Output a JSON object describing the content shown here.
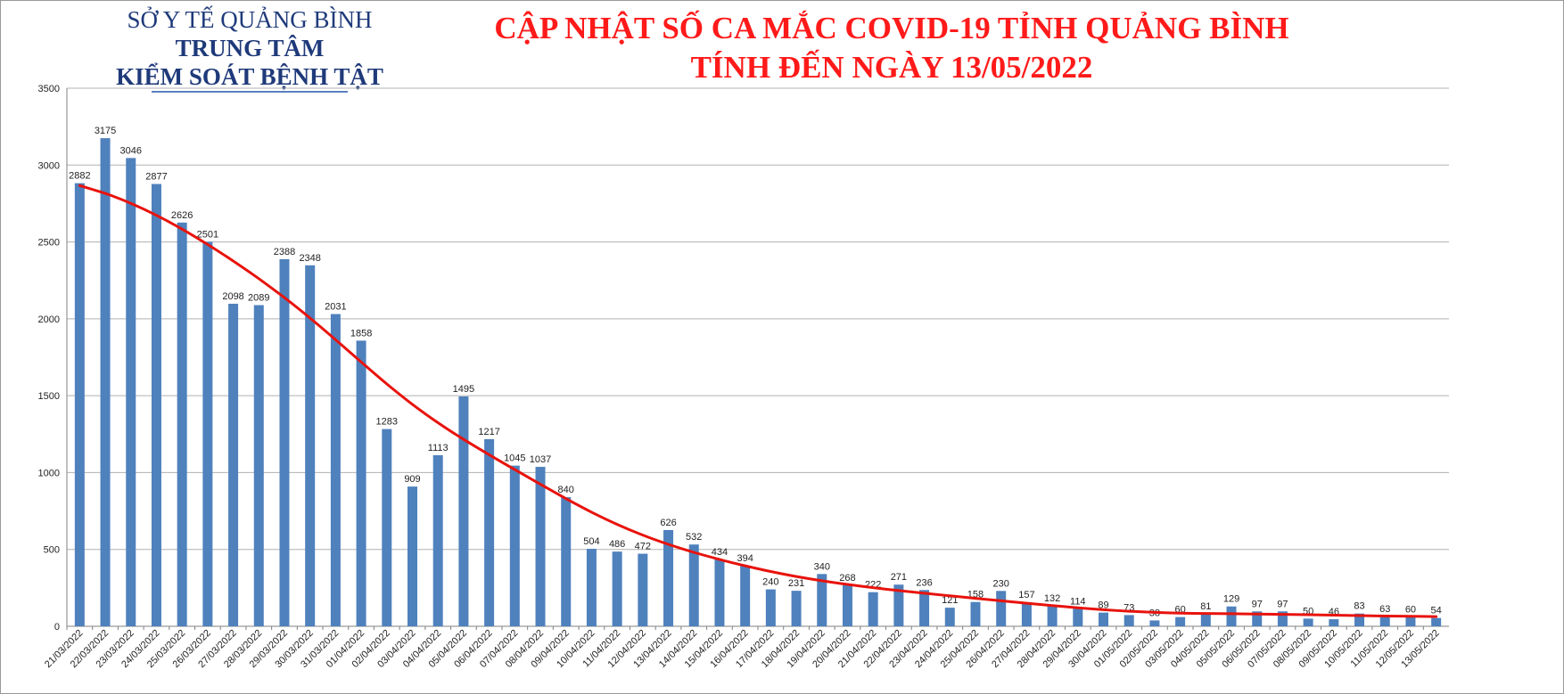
{
  "org": {
    "line1": "SỞ Y TẾ QUẢNG BÌNH",
    "line2": "TRUNG TÂM",
    "line3": "KIỂM SOÁT BỆNH TẬT"
  },
  "colors": {
    "bar": "#4f81bd",
    "trend": "#e8130c",
    "grid": "#b0b0b0",
    "axis": "#808080",
    "text": "#222222"
  },
  "chart_data": {
    "type": "bar",
    "title": [
      "CẬP NHẬT SỐ CA MẮC COVID-19 TỈNH QUẢNG BÌNH",
      "TÍNH ĐẾN NGÀY 13/05/2022"
    ],
    "xlabel": "",
    "ylabel": "",
    "ylim": [
      0,
      3500
    ],
    "yticks": [
      0,
      500,
      1000,
      1500,
      2000,
      2500,
      3000,
      3500
    ],
    "grid": true,
    "legend": "none",
    "trendline": "smooth decreasing curve",
    "categories": [
      "21/03/2022",
      "22/03/2022",
      "23/03/2022",
      "24/03/2022",
      "25/03/2022",
      "26/03/2022",
      "27/03/2022",
      "28/03/2022",
      "29/03/2022",
      "30/03/2022",
      "31/03/2022",
      "01/04/2022",
      "02/04/2022",
      "03/04/2022",
      "04/04/2022",
      "05/04/2022",
      "06/04/2022",
      "07/04/2022",
      "08/04/2022",
      "09/04/2022",
      "10/04/2022",
      "11/04/2022",
      "12/04/2022",
      "13/04/2022",
      "14/04/2022",
      "15/04/2022",
      "16/04/2022",
      "17/04/2022",
      "18/04/2022",
      "19/04/2022",
      "20/04/2022",
      "21/04/2022",
      "22/04/2022",
      "23/04/2022",
      "24/04/2022",
      "25/04/2022",
      "26/04/2022",
      "27/04/2022",
      "28/04/2022",
      "29/04/2022",
      "30/04/2022",
      "01/05/2022",
      "02/05/2022",
      "03/05/2022",
      "04/05/2022",
      "05/05/2022",
      "06/05/2022",
      "07/05/2022",
      "08/05/2022",
      "09/05/2022",
      "10/05/2022",
      "11/05/2022",
      "12/05/2022",
      "13/05/2022"
    ],
    "values": [
      2882,
      3175,
      3046,
      2877,
      2626,
      2501,
      2098,
      2089,
      2388,
      2348,
      2031,
      1858,
      1283,
      909,
      1113,
      1495,
      1217,
      1045,
      1037,
      840,
      504,
      486,
      472,
      626,
      532,
      434,
      394,
      240,
      231,
      340,
      268,
      222,
      271,
      236,
      121,
      158,
      230,
      157,
      132,
      114,
      89,
      73,
      38,
      60,
      81,
      129,
      97,
      97,
      50,
      46,
      83,
      63,
      60,
      54
    ]
  }
}
